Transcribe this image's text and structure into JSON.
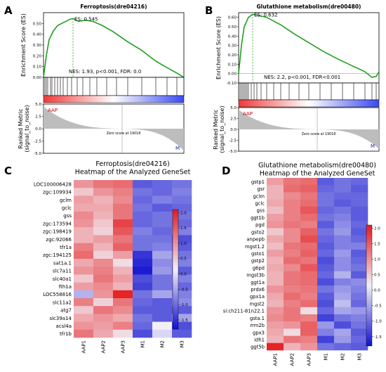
{
  "colors": {
    "es_curve": "#1fa01f",
    "es_dashed": "#1fa01f",
    "heat_high": "#e31a1c",
    "heat_mid": "#f2f0f7",
    "heat_low": "#1010d0",
    "gradient_red": "#f03a3a",
    "gradient_blue": "#3a4af0",
    "label_red": "#c00000",
    "label_blue": "#1a2aa0"
  },
  "chart_data": [
    {
      "id": "A",
      "panel_label": "A",
      "type": "line",
      "title": "Ferroptosis(dre04216)",
      "ylabel": "Enrichment Score (ES)",
      "ylim": [
        0,
        0.6
      ],
      "yticks": [
        "0.50",
        "0.40",
        "0.30",
        "0.20",
        "0.10",
        "0.00"
      ],
      "ytick_values": [
        0.5,
        0.4,
        0.3,
        0.2,
        0.1,
        0.0
      ],
      "es_label": "ES: 0.545",
      "es_peak": 0.545,
      "stats": "NES: 1.93, p<0.001, FDR: 0.0",
      "curve": [
        [
          0,
          0.0
        ],
        [
          0.02,
          0.2
        ],
        [
          0.04,
          0.35
        ],
        [
          0.07,
          0.43
        ],
        [
          0.1,
          0.48
        ],
        [
          0.13,
          0.5
        ],
        [
          0.16,
          0.52
        ],
        [
          0.19,
          0.54
        ],
        [
          0.21,
          0.545
        ],
        [
          0.25,
          0.52
        ],
        [
          0.3,
          0.53
        ],
        [
          0.35,
          0.52
        ],
        [
          0.42,
          0.48
        ],
        [
          0.5,
          0.42
        ],
        [
          0.6,
          0.33
        ],
        [
          0.7,
          0.25
        ],
        [
          0.8,
          0.15
        ],
        [
          0.88,
          0.09
        ],
        [
          0.95,
          0.04
        ],
        [
          1.0,
          0.0
        ]
      ],
      "peak_x": 0.21,
      "hits": [
        0.01,
        0.02,
        0.03,
        0.05,
        0.06,
        0.08,
        0.1,
        0.12,
        0.14,
        0.17,
        0.2,
        0.24,
        0.28,
        0.33,
        0.38,
        0.45,
        0.52,
        0.6,
        0.7,
        0.8,
        0.88,
        0.95
      ],
      "metric_ylabel": "Ranked Metric (signal_to_noise)",
      "metric_yticks": [
        "5.0",
        "2.5",
        "0.0",
        "-2.5",
        "-5.0"
      ],
      "metric_ylim": [
        -5,
        5
      ],
      "label_left": "AAP",
      "label_right": "M",
      "zero_label": "Zero score at 19018",
      "zero_x": 0.56
    },
    {
      "id": "B",
      "panel_label": "B",
      "type": "line",
      "title": "Glutathione metabolism(dre00480)",
      "ylabel": "Enrichment Score (ES)",
      "ylim": [
        -0.1,
        0.65
      ],
      "yticks": [
        "0.60",
        "0.50",
        "0.40",
        "0.30",
        "0.20",
        "0.10",
        "0.00",
        "-0.10"
      ],
      "ytick_values": [
        0.6,
        0.5,
        0.4,
        0.3,
        0.2,
        0.1,
        0.0,
        -0.1
      ],
      "es_label": "ES: 0.632",
      "es_peak": 0.632,
      "stats": "NES: 2.2, p<0.001, FDR<0.001",
      "curve": [
        [
          0,
          0.0
        ],
        [
          0.02,
          0.3
        ],
        [
          0.04,
          0.5
        ],
        [
          0.07,
          0.6
        ],
        [
          0.1,
          0.632
        ],
        [
          0.14,
          0.62
        ],
        [
          0.2,
          0.6
        ],
        [
          0.3,
          0.52
        ],
        [
          0.4,
          0.42
        ],
        [
          0.5,
          0.33
        ],
        [
          0.6,
          0.24
        ],
        [
          0.7,
          0.16
        ],
        [
          0.8,
          0.09
        ],
        [
          0.9,
          0.02
        ],
        [
          0.95,
          -0.04
        ],
        [
          0.98,
          -0.03
        ],
        [
          1.0,
          0.02
        ]
      ],
      "peak_x": 0.1,
      "hits": [
        0.01,
        0.02,
        0.03,
        0.04,
        0.05,
        0.06,
        0.07,
        0.09,
        0.11,
        0.13,
        0.16,
        0.2,
        0.25,
        0.3,
        0.36,
        0.43,
        0.5,
        0.58,
        0.66,
        0.74,
        0.82,
        0.9,
        0.95,
        0.98
      ],
      "metric_ylabel": "Ranked Metric (signal_to_noise)",
      "metric_yticks": [
        "5.0",
        "2.5",
        "0.0",
        "-2.5",
        "-5.0"
      ],
      "metric_ylim": [
        -5,
        5
      ],
      "label_left": "AAP",
      "label_right": "M",
      "zero_label": "Zero score at 19018",
      "zero_x": 0.56
    },
    {
      "id": "C",
      "panel_label": "C",
      "type": "heatmap",
      "title_line1": "Ferroptosis(dre04216)",
      "title_line2": "Heatmap of the Analyzed GeneSet",
      "columns": [
        "AAP1",
        "AAP2",
        "AAP3",
        "M1",
        "M2",
        "M3"
      ],
      "rows": [
        "LOC100006428",
        "zgc:109934",
        "gclm",
        "gclc",
        "gss",
        "zgc:173594",
        "zgc:198419",
        "zgc:92066",
        "tfr1a",
        "zgc:194125",
        "sat1a.1",
        "slc7a11",
        "slc40a1",
        "fth1a",
        "LOC558816",
        "slc11a2",
        "atg7",
        "slc39a14",
        "acsl4a",
        "tfr1b"
      ],
      "values": [
        [
          0.9,
          1.2,
          1.3,
          -1.2,
          -1.1,
          -1.0
        ],
        [
          0.4,
          0.9,
          1.1,
          -1.0,
          -1.1,
          -0.9
        ],
        [
          0.8,
          0.6,
          1.0,
          -1.1,
          -0.9,
          -1.0
        ],
        [
          0.7,
          0.7,
          1.2,
          -1.0,
          -1.2,
          -1.1
        ],
        [
          1.0,
          0.6,
          1.2,
          -1.1,
          -1.0,
          -1.0
        ],
        [
          0.9,
          0.4,
          1.7,
          -1.1,
          -1.0,
          -1.1
        ],
        [
          0.6,
          0.3,
          1.5,
          -0.9,
          -1.1,
          -0.9
        ],
        [
          0.6,
          0.8,
          1.2,
          -1.0,
          -1.0,
          -1.3
        ],
        [
          1.1,
          0.6,
          1.4,
          -1.0,
          -0.9,
          -1.2
        ],
        [
          1.3,
          0.3,
          0.8,
          -1.5,
          -0.6,
          -1.0
        ],
        [
          0.7,
          1.0,
          0.2,
          -1.6,
          -0.8,
          -0.9
        ],
        [
          0.9,
          1.1,
          0.6,
          -1.7,
          -0.7,
          -1.2
        ],
        [
          0.4,
          1.2,
          0.8,
          -1.3,
          -1.0,
          -0.9
        ],
        [
          0.8,
          1.0,
          0.6,
          -1.4,
          -1.0,
          -1.1
        ],
        [
          -0.5,
          0.9,
          2.0,
          -1.0,
          -0.6,
          -0.9
        ],
        [
          1.1,
          0.3,
          1.2,
          -1.1,
          -1.2,
          -0.8
        ],
        [
          0.4,
          1.2,
          1.0,
          -1.2,
          -1.2,
          -1.2
        ],
        [
          0.7,
          0.9,
          0.7,
          -1.0,
          -1.2,
          -0.6
        ],
        [
          0.9,
          0.8,
          1.1,
          -1.1,
          0.0,
          -1.3
        ],
        [
          1.2,
          0.7,
          0.2,
          -1.3,
          -0.2,
          -1.2
        ]
      ],
      "colorbar_ticks": [
        "2.0",
        "1.5",
        "1.0",
        "0.5",
        "0.0",
        "-0.5",
        "-1.0",
        "-1.5"
      ],
      "colorbar_values": [
        2.0,
        1.5,
        1.0,
        0.5,
        0.0,
        -0.5,
        -1.0,
        -1.5
      ],
      "vmin": -1.8,
      "vmax": 2.1
    },
    {
      "id": "D",
      "panel_label": "D",
      "type": "heatmap",
      "title_line1": "Glutathione metabolism(dre00480)",
      "title_line2": "Heatmap of the Analyzed GeneSet",
      "columns": [
        "AAP1",
        "AAP2",
        "AAP3",
        "M1",
        "M2",
        "M3"
      ],
      "rows": [
        "gstp1",
        "gsr",
        "gclm",
        "gclc",
        "gss",
        "ggt1b",
        "pgd",
        "gsto2",
        "anpepb",
        "mgst1.2",
        "gsto1",
        "gstp2",
        "g6pd",
        "mgst3b",
        "ggt1a",
        "prdx6",
        "gpx1a",
        "mgst2",
        "si:ch211-81n22.1",
        "gsta.1",
        "rrm2b",
        "gpx3",
        "idh1",
        "ggt5b"
      ],
      "values": [
        [
          0.8,
          1.2,
          1.3,
          -1.2,
          -1.0,
          -1.1
        ],
        [
          0.6,
          1.3,
          1.4,
          -1.1,
          -1.0,
          -1.2
        ],
        [
          0.6,
          1.0,
          1.2,
          -1.0,
          -1.1,
          -1.1
        ],
        [
          0.7,
          1.1,
          1.3,
          -1.0,
          -1.2,
          -1.1
        ],
        [
          0.5,
          1.1,
          1.5,
          -1.1,
          -1.0,
          -1.2
        ],
        [
          0.8,
          1.1,
          1.3,
          -1.0,
          -0.9,
          -1.2
        ],
        [
          0.9,
          1.2,
          1.1,
          -1.2,
          -0.8,
          -1.1
        ],
        [
          0.4,
          1.0,
          1.4,
          -1.0,
          -0.7,
          -1.2
        ],
        [
          0.7,
          1.0,
          1.6,
          -1.1,
          -0.9,
          -1.1
        ],
        [
          0.5,
          1.2,
          1.3,
          -1.2,
          -0.9,
          -0.9
        ],
        [
          0.8,
          1.1,
          1.4,
          -1.1,
          -0.7,
          -1.2
        ],
        [
          0.6,
          1.3,
          1.2,
          -1.3,
          -0.8,
          -1.1
        ],
        [
          0.7,
          1.0,
          1.5,
          -1.2,
          -0.8,
          -1.0
        ],
        [
          0.6,
          1.2,
          1.3,
          -1.1,
          -0.5,
          -1.2
        ],
        [
          0.6,
          1.2,
          1.3,
          -1.3,
          -0.9,
          -0.8
        ],
        [
          0.9,
          1.1,
          1.2,
          -1.0,
          -0.7,
          -0.9
        ],
        [
          0.7,
          1.3,
          1.1,
          -1.2,
          -0.6,
          -1.0
        ],
        [
          0.6,
          1.1,
          1.3,
          -1.3,
          -0.4,
          -1.1
        ],
        [
          0.9,
          1.2,
          0.2,
          -1.1,
          -0.6,
          -0.7
        ],
        [
          1.0,
          1.2,
          1.1,
          -1.4,
          -1.0,
          -0.9
        ],
        [
          0.8,
          0.9,
          1.4,
          -0.7,
          -1.3,
          -1.0
        ],
        [
          0.7,
          0.2,
          1.4,
          -0.9,
          -0.6,
          -1.2
        ],
        [
          0.6,
          1.2,
          1.1,
          -1.4,
          -0.7,
          -1.1
        ],
        [
          2.0,
          0.6,
          0.9,
          -1.0,
          -1.1,
          -1.2
        ]
      ],
      "colorbar_ticks": [
        "2.0",
        "1.5",
        "1.0",
        "0.5",
        "0.0",
        "-0.5",
        "-1.0",
        "-1.5"
      ],
      "colorbar_values": [
        2.0,
        1.5,
        1.0,
        0.5,
        0.0,
        -0.5,
        -1.0,
        -1.5
      ],
      "vmin": -1.8,
      "vmax": 2.1
    }
  ]
}
